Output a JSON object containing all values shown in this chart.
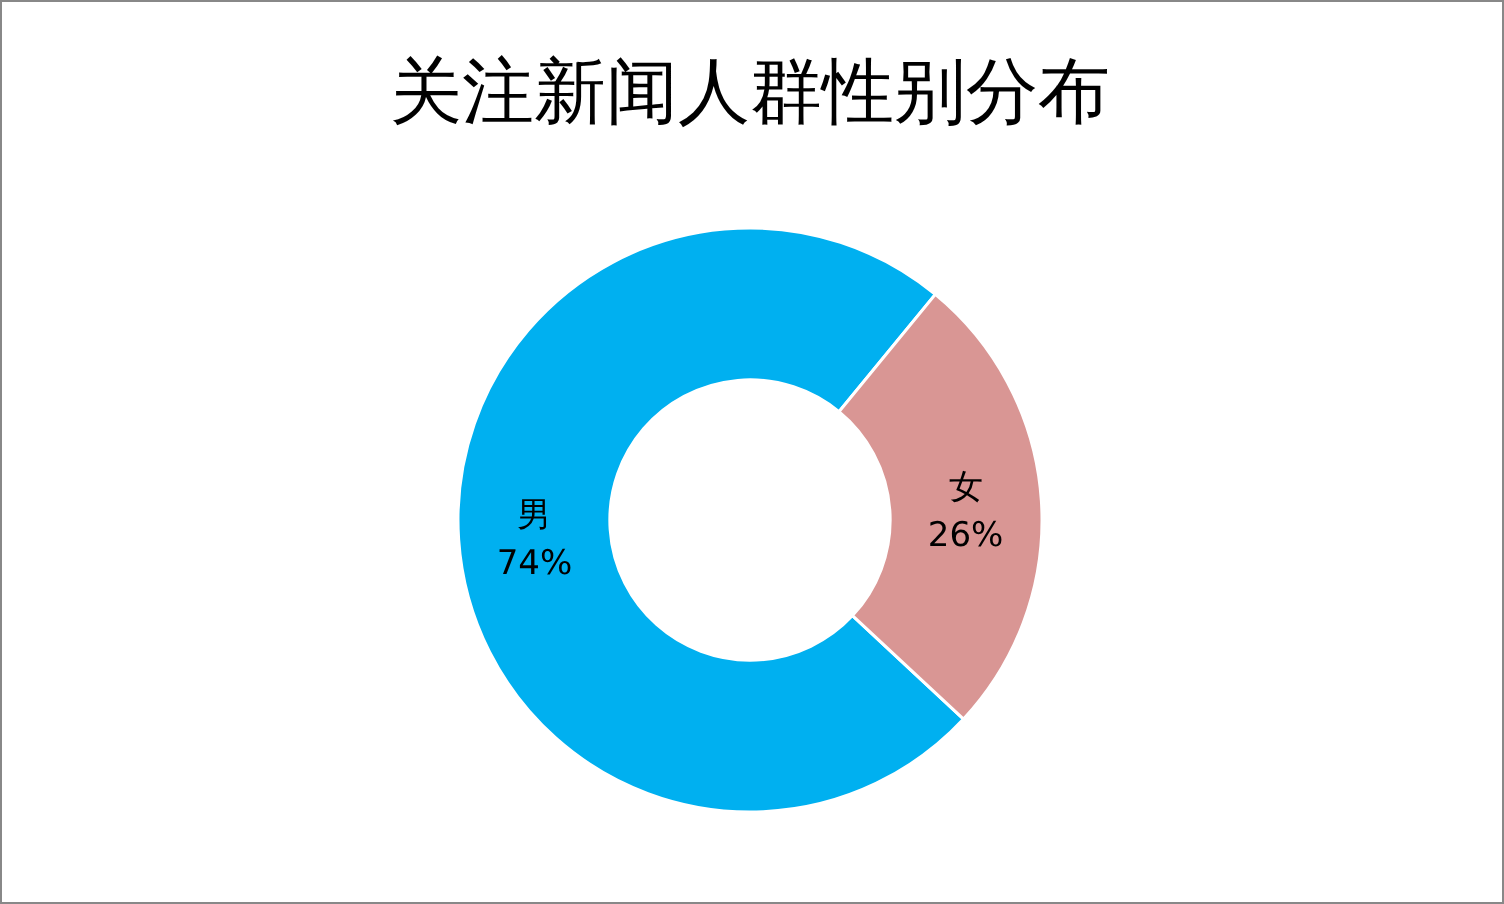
{
  "chart_data": {
    "type": "donut",
    "title": "关注新闻人群性别分布",
    "categories": [
      "男",
      "女"
    ],
    "values": [
      74,
      26
    ],
    "colors": [
      "#00b0f0",
      "#d99694"
    ],
    "value_labels": [
      "74%",
      "26%"
    ],
    "legend": false
  }
}
